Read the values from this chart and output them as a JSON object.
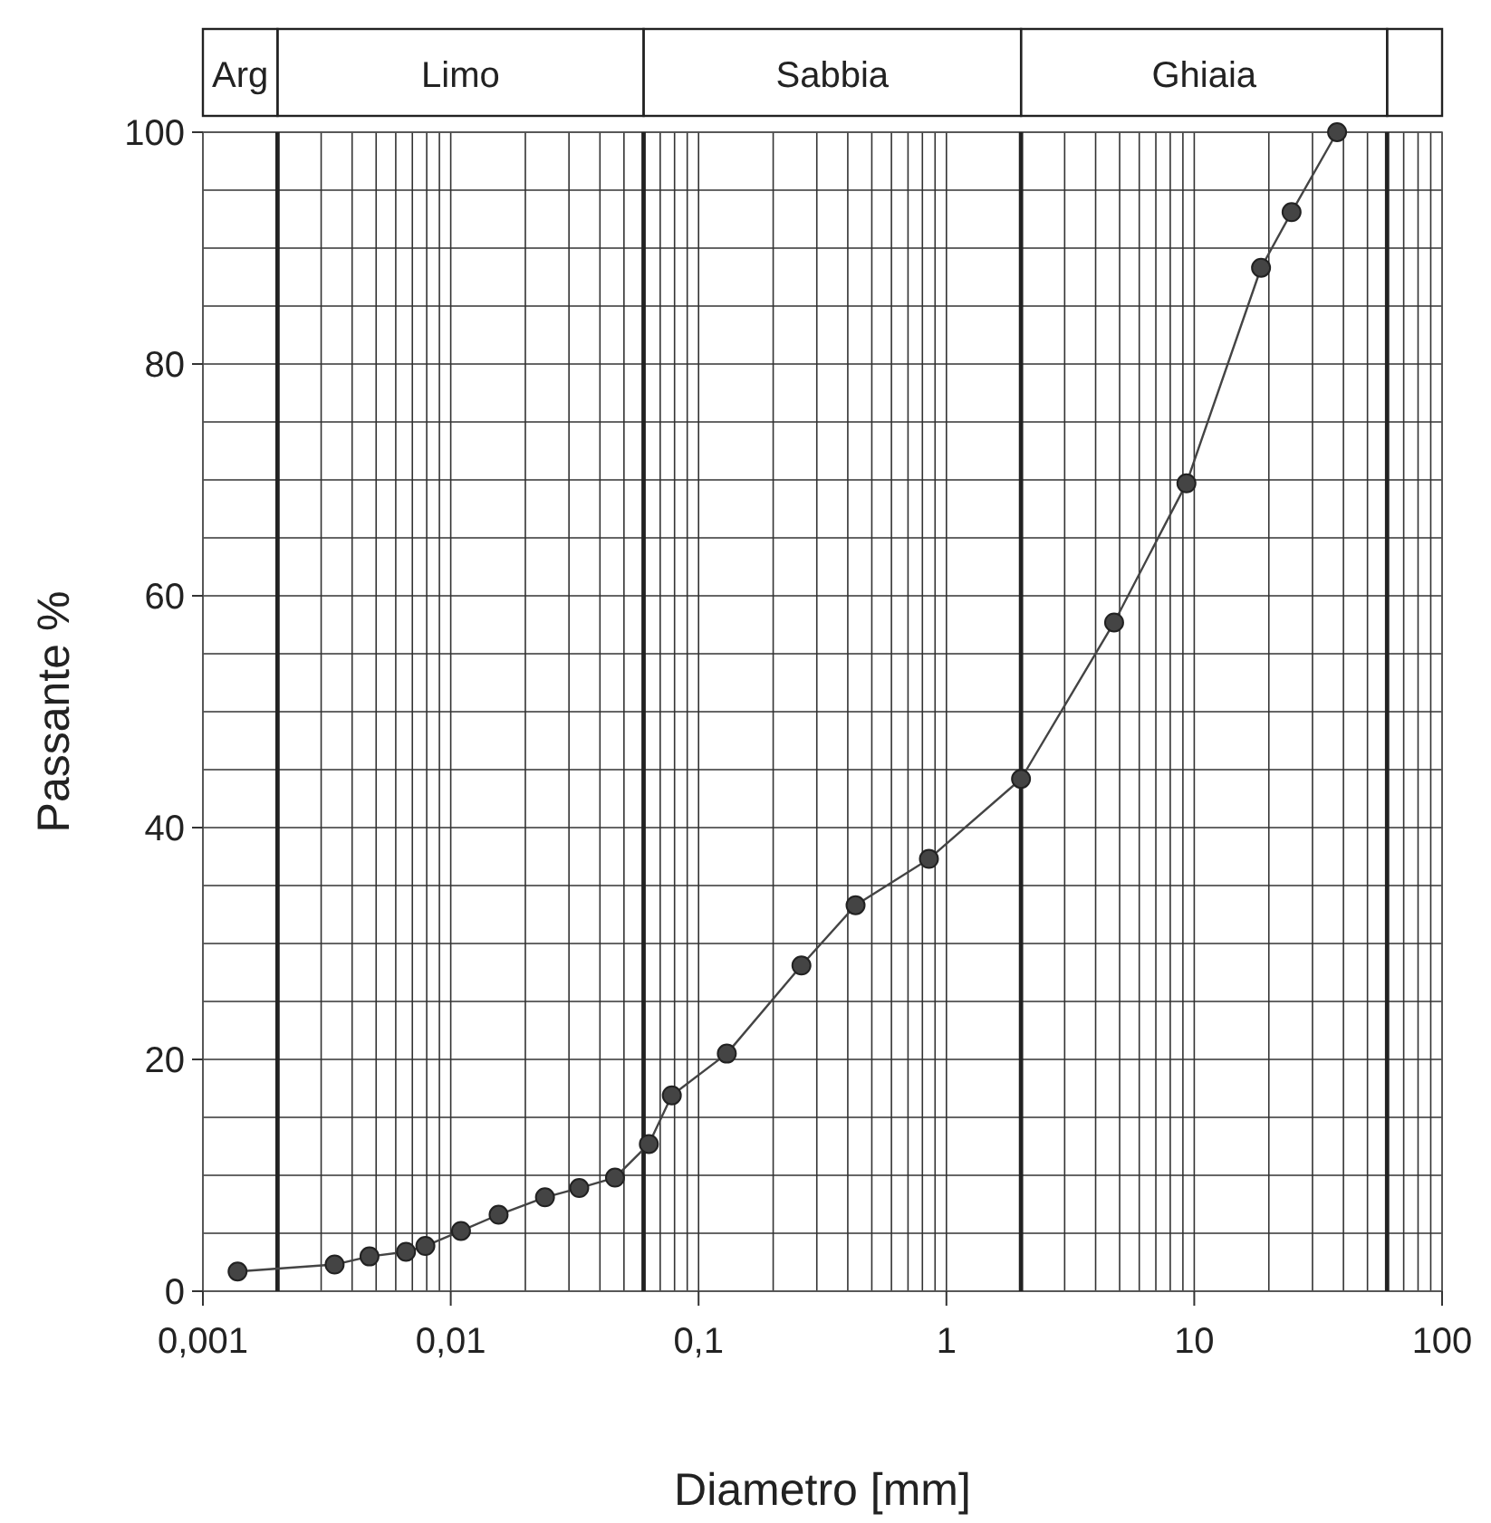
{
  "chart_data": {
    "type": "line",
    "xlabel": "Diametro [mm]",
    "ylabel": "Passante %",
    "log": "x",
    "grid": true,
    "marker": "circle",
    "line_style": "solid",
    "xlim": [
      0.001,
      100
    ],
    "ylim": [
      0,
      100
    ],
    "xticks": [
      {
        "value": 0.001,
        "label": "0,001"
      },
      {
        "value": 0.003,
        "label": null
      },
      {
        "value": 0.004,
        "label": null
      },
      {
        "value": 0.005,
        "label": null
      },
      {
        "value": 0.006,
        "label": null
      },
      {
        "value": 0.007,
        "label": null
      },
      {
        "value": 0.008,
        "label": null
      },
      {
        "value": 0.009,
        "label": null
      },
      {
        "value": 0.01,
        "label": "0,01"
      },
      {
        "value": 0.02,
        "label": null
      },
      {
        "value": 0.03,
        "label": null
      },
      {
        "value": 0.04,
        "label": null
      },
      {
        "value": 0.05,
        "label": null
      },
      {
        "value": 0.07,
        "label": null
      },
      {
        "value": 0.08,
        "label": null
      },
      {
        "value": 0.09,
        "label": null
      },
      {
        "value": 0.1,
        "label": "0,1"
      },
      {
        "value": 0.2,
        "label": null
      },
      {
        "value": 0.3,
        "label": null
      },
      {
        "value": 0.4,
        "label": null
      },
      {
        "value": 0.5,
        "label": null
      },
      {
        "value": 0.6,
        "label": null
      },
      {
        "value": 0.7,
        "label": null
      },
      {
        "value": 0.8,
        "label": null
      },
      {
        "value": 0.9,
        "label": null
      },
      1,
      {
        "value": 3,
        "label": null
      },
      {
        "value": 4,
        "label": null
      },
      {
        "value": 5,
        "label": null
      },
      {
        "value": 6,
        "label": null
      },
      {
        "value": 7,
        "label": null
      },
      {
        "value": 8,
        "label": null
      },
      {
        "value": 9,
        "label": null
      },
      10,
      {
        "value": 20,
        "label": null
      },
      {
        "value": 30,
        "label": null
      },
      {
        "value": 40,
        "label": null
      },
      {
        "value": 50,
        "label": null
      },
      {
        "value": 70,
        "label": null
      },
      {
        "value": 80,
        "label": null
      },
      {
        "value": 90,
        "label": null
      },
      100
    ],
    "yticks": [
      0,
      {
        "value": 5,
        "label": null
      },
      {
        "value": 10,
        "label": null
      },
      {
        "value": 15,
        "label": null
      },
      20,
      {
        "value": 25,
        "label": null
      },
      {
        "value": 30,
        "label": null
      },
      {
        "value": 35,
        "label": null
      },
      40,
      {
        "value": 45,
        "label": null
      },
      {
        "value": 50,
        "label": null
      },
      {
        "value": 55,
        "label": null
      },
      60,
      {
        "value": 65,
        "label": null
      },
      {
        "value": 70,
        "label": null
      },
      {
        "value": 75,
        "label": null
      },
      80,
      {
        "value": 85,
        "label": null
      },
      {
        "value": 90,
        "label": null
      },
      {
        "value": 95,
        "label": null
      },
      100
    ],
    "ref_lines": [
      {
        "axis": "x",
        "value": 0.002
      },
      {
        "axis": "x",
        "value": 0.06
      },
      {
        "axis": "x",
        "value": 2
      },
      {
        "axis": "x",
        "value": 60
      }
    ],
    "annotations": [
      "Arg",
      "Limo",
      "Sabbia",
      "Ghiaia"
    ],
    "series": [
      {
        "color": "#444444",
        "x": [
          0.00138,
          0.0034,
          0.0047,
          0.0066,
          0.0079,
          0.011,
          0.0156,
          0.024,
          0.033,
          0.046,
          0.063,
          0.078,
          0.13,
          0.26,
          0.43,
          0.85,
          2.0,
          4.75,
          9.3,
          18.6,
          24.7,
          37.7
        ],
        "values": [
          1.7,
          2.3,
          3.0,
          3.4,
          3.9,
          5.2,
          6.6,
          8.1,
          8.9,
          9.8,
          12.7,
          16.9,
          20.5,
          28.1,
          33.3,
          37.3,
          44.2,
          57.7,
          69.7,
          88.3,
          93.1,
          100
        ]
      }
    ]
  }
}
